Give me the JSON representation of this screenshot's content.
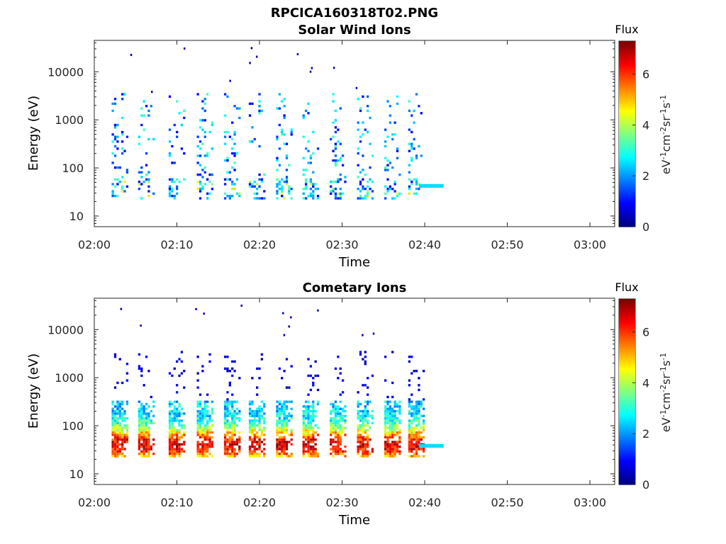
{
  "figure": {
    "title": "RPCICA160318T02.PNG"
  },
  "chart_data": [
    {
      "type": "heatmap",
      "title": "Solar Wind Ions",
      "xlabel": "Time",
      "ylabel": "Energy (eV)",
      "x_ticks": [
        "02:00",
        "02:10",
        "02:20",
        "02:30",
        "02:40",
        "02:50",
        "03:00"
      ],
      "x_range": [
        "02:00",
        "03:03"
      ],
      "y_scale": "log",
      "y_ticks": [
        "10",
        "100",
        "1000",
        "10000"
      ],
      "y_range": [
        6,
        45000
      ],
      "colorbar": {
        "label": "Flux",
        "unit_label": "eV-1 cm-2 sr-1 s-1",
        "ticks": [
          "0",
          "2",
          "4",
          "6"
        ],
        "range": [
          0,
          7.3
        ],
        "colormap": "jet"
      },
      "sweep_times_min": [
        2.6,
        5.8,
        9.5,
        12.9,
        16.2,
        19.2,
        22.5,
        25.7,
        29.0,
        32.3,
        35.6,
        38.5
      ],
      "data_end_time_min": 42.3,
      "band_at_end": {
        "energy_eV": 42,
        "flux": 2.5
      },
      "typical_flux_range": [
        0.5,
        3.5
      ]
    },
    {
      "type": "heatmap",
      "title": "Cometary Ions",
      "xlabel": "Time",
      "ylabel": "Energy (eV)",
      "x_ticks": [
        "02:00",
        "02:10",
        "02:20",
        "02:30",
        "02:40",
        "02:50",
        "03:00"
      ],
      "x_range": [
        "02:00",
        "03:03"
      ],
      "y_scale": "log",
      "y_ticks": [
        "10",
        "100",
        "1000",
        "10000"
      ],
      "y_range": [
        6,
        45000
      ],
      "colorbar": {
        "label": "Flux",
        "unit_label": "eV-1 cm-2 sr-1 s-1",
        "ticks": [
          "0",
          "2",
          "4",
          "6"
        ],
        "range": [
          0,
          7.3
        ],
        "colormap": "jet"
      },
      "sweep_times_min": [
        2.6,
        5.8,
        9.5,
        12.9,
        16.2,
        19.2,
        22.5,
        25.7,
        29.0,
        32.3,
        35.6,
        38.5
      ],
      "data_end_time_min": 42.3,
      "band_at_end": {
        "energy_eV": 38,
        "flux": 2.5
      },
      "typical_flux_range": [
        2.5,
        6.8
      ],
      "peak_energy_eV": 38
    }
  ]
}
